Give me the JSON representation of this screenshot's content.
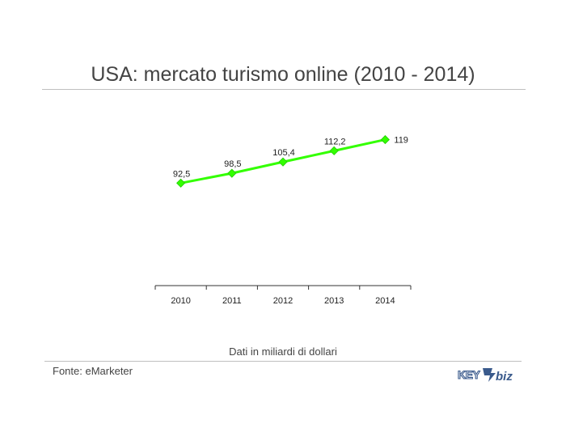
{
  "chart_data": {
    "type": "line",
    "title": "USA: mercato turismo online (2010 - 2014)",
    "categories": [
      "2010",
      "2011",
      "2012",
      "2013",
      "2014"
    ],
    "series": [
      {
        "values": [
          92.5,
          98.5,
          105.4,
          112.2,
          119
        ]
      }
    ],
    "data_labels": [
      "92,5",
      "98,5",
      "105,4",
      "112,2",
      "119"
    ],
    "ylim": [
      30,
      140
    ],
    "grid": false,
    "legend": "none",
    "line_color": "#33ff00",
    "marker_color": "#33ff00"
  },
  "note": "Dati in miliardi di dollari",
  "source": "Fonte: eMarketer",
  "logo": {
    "name": "key4biz-logo",
    "text": "KEY4biz",
    "color": "#3a5a8c"
  }
}
